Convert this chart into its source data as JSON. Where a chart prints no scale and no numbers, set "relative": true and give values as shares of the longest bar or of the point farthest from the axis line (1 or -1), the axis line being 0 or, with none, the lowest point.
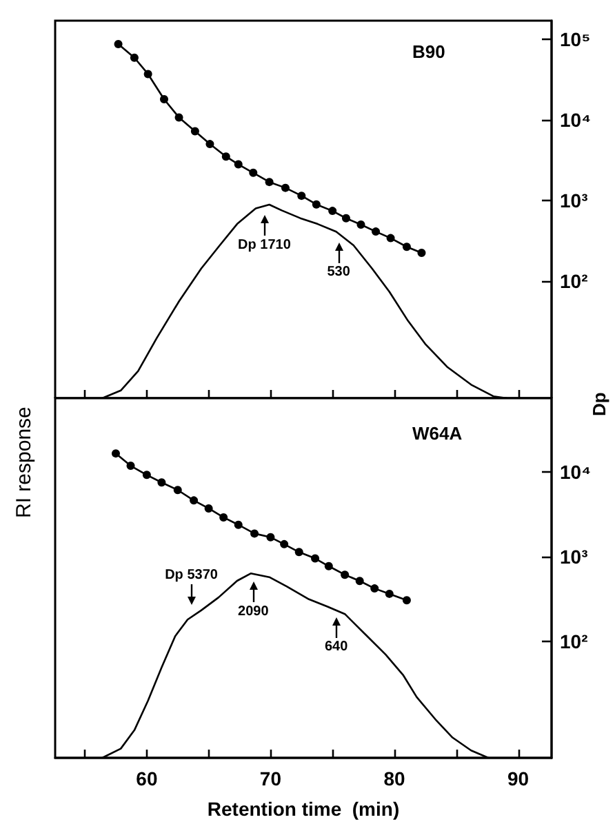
{
  "chart_data": [
    {
      "type": "line",
      "title": "B90",
      "relative": true,
      "grid": false,
      "tick_labels": false,
      "xlim": [
        52.6,
        92.7
      ],
      "xticks": [
        {
          "value": 55,
          "label": null
        },
        {
          "value": 60,
          "label": null
        },
        {
          "value": 65,
          "label": null
        },
        {
          "value": 70,
          "label": null
        },
        {
          "value": 75,
          "label": null
        },
        {
          "value": 80,
          "label": null
        },
        {
          "value": 85,
          "label": null
        },
        {
          "value": 90,
          "label": null
        }
      ],
      "series": [
        {
          "color": "#000000",
          "marker": "none",
          "x": [
            56.4,
            57.9,
            59.3,
            60.8,
            62.6,
            64.4,
            65.9,
            67.3,
            68.8,
            69.9,
            70.9,
            72.4,
            73.8,
            75.3,
            76.7,
            78.2,
            79.6,
            81.1,
            82.5,
            84.3,
            86.2,
            88.0,
            89.1
          ],
          "values": [
            0,
            0.04,
            0.14,
            0.31,
            0.5,
            0.67,
            0.79,
            0.9,
            0.98,
            1.0,
            0.97,
            0.93,
            0.9,
            0.86,
            0.79,
            0.67,
            0.55,
            0.4,
            0.28,
            0.16,
            0.07,
            0.01,
            0
          ]
        }
      ],
      "annotations": [
        {
          "text": "Dp 1710",
          "x": 69.5,
          "y": 0.99
        },
        {
          "text": "530",
          "x": 75.5,
          "y": 0.85
        }
      ]
    },
    {
      "type": "line",
      "log": true,
      "grid": false,
      "tick_labels": "y",
      "xlim": [
        52.6,
        92.7
      ],
      "ylim": [
        3.5,
        170000
      ],
      "yticks": [
        {
          "value": 100,
          "label": "10²"
        },
        {
          "value": 1000,
          "label": "10³"
        },
        {
          "value": 10000,
          "label": "10⁴"
        },
        {
          "value": 100000,
          "label": "10⁵"
        }
      ],
      "series": [
        {
          "color": "#000000",
          "marker": "circle",
          "x": [
            57.7,
            59.0,
            60.1,
            61.4,
            62.6,
            63.9,
            65.1,
            66.4,
            67.4,
            68.6,
            69.9,
            71.2,
            72.5,
            73.7,
            75.0,
            76.1,
            77.3,
            78.5,
            79.7,
            81.0,
            82.2
          ],
          "values": [
            87000,
            59000,
            37000,
            18000,
            10700,
            7200,
            5000,
            3500,
            2800,
            2200,
            1690,
            1430,
            1140,
            890,
            740,
            600,
            500,
            410,
            340,
            265,
            223
          ]
        }
      ]
    },
    {
      "type": "line",
      "title": "W64A",
      "relative": true,
      "grid": false,
      "tick_labels": "x",
      "xlabel": "Retention time  (min)",
      "ylabel": "RI response",
      "xlim": [
        52.6,
        92.7
      ],
      "xticks": [
        {
          "value": 55,
          "label": null
        },
        60,
        {
          "value": 65,
          "label": null
        },
        70,
        {
          "value": 75,
          "label": null
        },
        80,
        {
          "value": 85,
          "label": null
        },
        90
      ],
      "series": [
        {
          "color": "#000000",
          "marker": "none",
          "x": [
            56.4,
            57.9,
            59.0,
            60.1,
            61.2,
            62.3,
            63.3,
            64.4,
            65.8,
            67.3,
            68.4,
            69.9,
            71.3,
            73.1,
            74.6,
            76.0,
            77.5,
            79.3,
            80.7,
            81.8,
            83.3,
            84.7,
            86.2,
            87.6
          ],
          "values": [
            0,
            0.05,
            0.15,
            0.31,
            0.49,
            0.66,
            0.75,
            0.8,
            0.87,
            0.96,
            1.0,
            0.98,
            0.93,
            0.86,
            0.82,
            0.78,
            0.68,
            0.56,
            0.45,
            0.33,
            0.21,
            0.11,
            0.04,
            0
          ]
        }
      ],
      "annotations": [
        {
          "text": "Dp 5370",
          "x": 63.6,
          "y": 0.79
        },
        {
          "text": "2090",
          "x": 68.6,
          "y": 1.0
        },
        {
          "text": "640",
          "x": 75.3,
          "y": 0.81
        }
      ]
    },
    {
      "type": "line",
      "log": true,
      "grid": false,
      "tick_labels": "y",
      "ylabel": "Dp",
      "xlim": [
        52.6,
        92.7
      ],
      "ylim": [
        4.2,
        74000
      ],
      "yticks": [
        {
          "value": 100,
          "label": "10²"
        },
        {
          "value": 1000,
          "label": "10³"
        },
        {
          "value": 10000,
          "label": "10⁴"
        }
      ],
      "series": [
        {
          "color": "#000000",
          "marker": "circle",
          "x": [
            57.5,
            58.7,
            60.0,
            61.2,
            62.5,
            63.8,
            65.0,
            66.2,
            67.4,
            68.7,
            70.0,
            71.1,
            72.3,
            73.6,
            74.7,
            76.0,
            77.2,
            78.4,
            79.6,
            81.0
          ],
          "values": [
            16500,
            11800,
            9200,
            7500,
            6100,
            4600,
            3700,
            2900,
            2370,
            1870,
            1690,
            1400,
            1130,
            950,
            770,
            610,
            515,
            420,
            363,
            305
          ]
        }
      ]
    }
  ]
}
